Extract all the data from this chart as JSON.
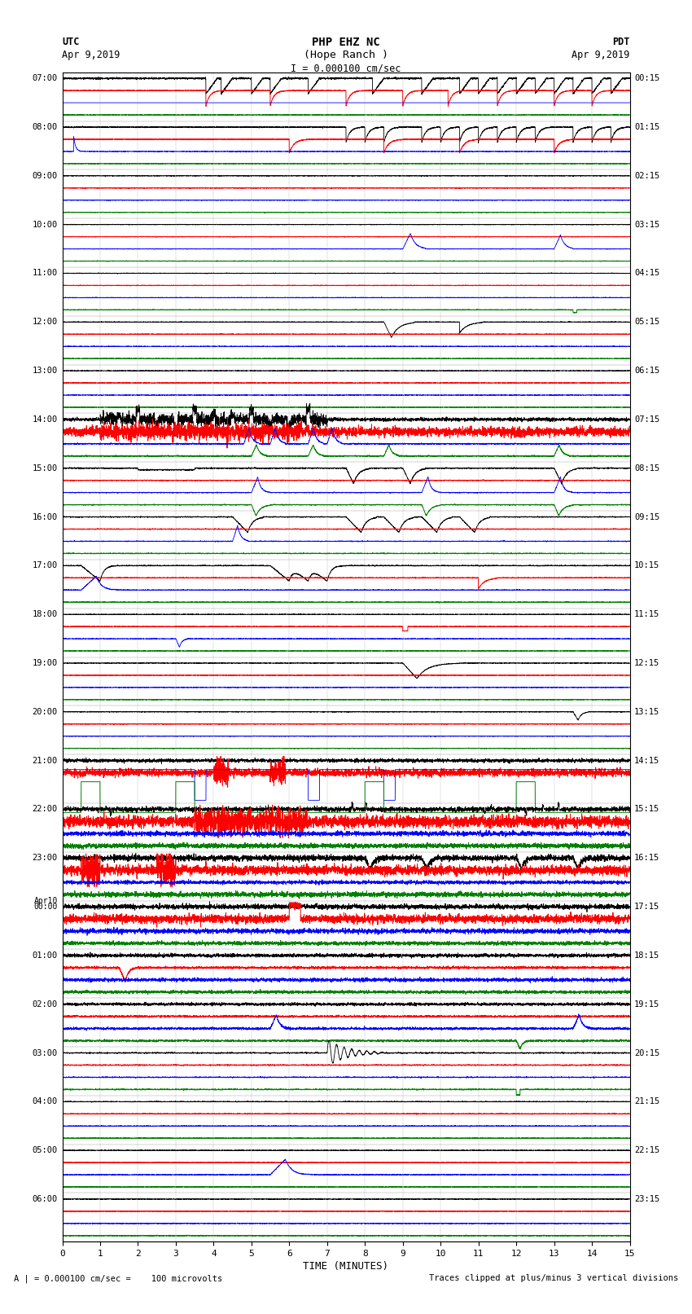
{
  "title_line1": "PHP EHZ NC",
  "title_line2": "(Hope Ranch )",
  "scale_label": "I = 0.000100 cm/sec",
  "left_header": "UTC",
  "left_date": "Apr 9,2019",
  "right_header": "PDT",
  "right_date": "Apr 9,2019",
  "xlabel": "TIME (MINUTES)",
  "bottom_left_note": "A | = 0.000100 cm/sec =    100 microvolts",
  "bottom_right_note": "Traces clipped at plus/minus 3 vertical divisions",
  "xmin": 0,
  "xmax": 15,
  "xticks": [
    0,
    1,
    2,
    3,
    4,
    5,
    6,
    7,
    8,
    9,
    10,
    11,
    12,
    13,
    14,
    15
  ],
  "num_trace_groups": 24,
  "row_colors": [
    "black",
    "red",
    "blue",
    "green"
  ],
  "bg_color": "#ffffff",
  "figwidth": 8.5,
  "figheight": 16.13,
  "dpi": 100
}
